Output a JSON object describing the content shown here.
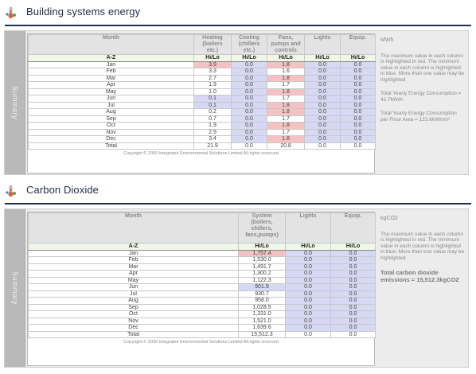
{
  "energy": {
    "title": "Building systems energy",
    "side_tab": "Summary",
    "headers": [
      "Month",
      "Heating (boilers etc.)",
      "Cooling (chillers etc.)",
      "Fans, pumps and controls",
      "Lights",
      "Equip."
    ],
    "subheaders": [
      "A-Z",
      "Hi/Lo",
      "Hi/Lo",
      "Hi/Lo",
      "Hi/Lo",
      "Hi/Lo"
    ],
    "rows": [
      {
        "month": "Jan",
        "cells": [
          {
            "v": "3.9",
            "s": "hi"
          },
          {
            "v": "0.0",
            "s": "lo"
          },
          {
            "v": "1.8",
            "s": "hi"
          },
          {
            "v": "0.0",
            "s": "lo"
          },
          {
            "v": "0.0",
            "s": "lo"
          }
        ]
      },
      {
        "month": "Feb",
        "cells": [
          {
            "v": "3.3",
            "s": ""
          },
          {
            "v": "0.0",
            "s": "lo"
          },
          {
            "v": "1.6",
            "s": ""
          },
          {
            "v": "0.0",
            "s": "lo"
          },
          {
            "v": "0.0",
            "s": "lo"
          }
        ]
      },
      {
        "month": "Mar",
        "cells": [
          {
            "v": "2.7",
            "s": ""
          },
          {
            "v": "0.0",
            "s": "lo"
          },
          {
            "v": "1.8",
            "s": "hi"
          },
          {
            "v": "0.0",
            "s": "lo"
          },
          {
            "v": "0.0",
            "s": "lo"
          }
        ]
      },
      {
        "month": "Apr",
        "cells": [
          {
            "v": "1.9",
            "s": ""
          },
          {
            "v": "0.0",
            "s": "lo"
          },
          {
            "v": "1.7",
            "s": ""
          },
          {
            "v": "0.0",
            "s": "lo"
          },
          {
            "v": "0.0",
            "s": "lo"
          }
        ]
      },
      {
        "month": "May",
        "cells": [
          {
            "v": "1.0",
            "s": ""
          },
          {
            "v": "0.0",
            "s": "lo"
          },
          {
            "v": "1.8",
            "s": "hi"
          },
          {
            "v": "0.0",
            "s": "lo"
          },
          {
            "v": "0.0",
            "s": "lo"
          }
        ]
      },
      {
        "month": "Jun",
        "cells": [
          {
            "v": "0.1",
            "s": "lo"
          },
          {
            "v": "0.0",
            "s": "lo"
          },
          {
            "v": "1.7",
            "s": ""
          },
          {
            "v": "0.0",
            "s": "lo"
          },
          {
            "v": "0.0",
            "s": "lo"
          }
        ]
      },
      {
        "month": "Jul",
        "cells": [
          {
            "v": "0.1",
            "s": "lo"
          },
          {
            "v": "0.0",
            "s": "lo"
          },
          {
            "v": "1.8",
            "s": "hi"
          },
          {
            "v": "0.0",
            "s": "lo"
          },
          {
            "v": "0.0",
            "s": "lo"
          }
        ]
      },
      {
        "month": "Aug",
        "cells": [
          {
            "v": "0.2",
            "s": ""
          },
          {
            "v": "0.0",
            "s": "lo"
          },
          {
            "v": "1.8",
            "s": "hi"
          },
          {
            "v": "0.0",
            "s": "lo"
          },
          {
            "v": "0.0",
            "s": "lo"
          }
        ]
      },
      {
        "month": "Sep",
        "cells": [
          {
            "v": "0.7",
            "s": ""
          },
          {
            "v": "0.0",
            "s": "lo"
          },
          {
            "v": "1.7",
            "s": ""
          },
          {
            "v": "0.0",
            "s": "lo"
          },
          {
            "v": "0.0",
            "s": "lo"
          }
        ]
      },
      {
        "month": "Oct",
        "cells": [
          {
            "v": "1.9",
            "s": ""
          },
          {
            "v": "0.0",
            "s": "lo"
          },
          {
            "v": "1.8",
            "s": "hi"
          },
          {
            "v": "0.0",
            "s": "lo"
          },
          {
            "v": "0.0",
            "s": "lo"
          }
        ]
      },
      {
        "month": "Nov",
        "cells": [
          {
            "v": "2.9",
            "s": ""
          },
          {
            "v": "0.0",
            "s": "lo"
          },
          {
            "v": "1.7",
            "s": ""
          },
          {
            "v": "0.0",
            "s": "lo"
          },
          {
            "v": "0.0",
            "s": "lo"
          }
        ]
      },
      {
        "month": "Dec",
        "cells": [
          {
            "v": "3.4",
            "s": ""
          },
          {
            "v": "0.0",
            "s": "lo"
          },
          {
            "v": "1.8",
            "s": "hi"
          },
          {
            "v": "0.0",
            "s": "lo"
          },
          {
            "v": "0.0",
            "s": "lo"
          }
        ]
      }
    ],
    "total": {
      "month": "Total",
      "cells": [
        "21.9",
        "0.0",
        "20.8",
        "0.0",
        "0.0"
      ]
    },
    "copyright": "Copyright © 2009 Integrated Environmental Solutions Limited All rights reserved",
    "info": {
      "unit": "MWh",
      "note": "The maximum value in each column is highlighted in red. The minimum value in each column is highlighted in blue. More than one value may be highlighted",
      "yearly": "Total Yearly Energy Consumption = 42.7MWh",
      "per_area": "Total Yearly Energy Consumption per Floor Area = 122.6kWh/m²"
    }
  },
  "co2": {
    "title": "Carbon Dioxide",
    "side_tab": "Summary",
    "headers": [
      "Month",
      "System (boilers, chillers, fans,pumps)",
      "Lights",
      "Equip."
    ],
    "subheaders": [
      "A-Z",
      "Hi/Lo",
      "Hi/Lo",
      "Hi/Lo"
    ],
    "rows": [
      {
        "month": "Jan",
        "cells": [
          {
            "v": "1,757.4",
            "s": "hi"
          },
          {
            "v": "0.0",
            "s": "lo"
          },
          {
            "v": "0.0",
            "s": "lo"
          }
        ]
      },
      {
        "month": "Feb",
        "cells": [
          {
            "v": "1,530.0",
            "s": ""
          },
          {
            "v": "0.0",
            "s": "lo"
          },
          {
            "v": "0.0",
            "s": "lo"
          }
        ]
      },
      {
        "month": "Mar",
        "cells": [
          {
            "v": "1,491.7",
            "s": ""
          },
          {
            "v": "0.0",
            "s": "lo"
          },
          {
            "v": "0.0",
            "s": "lo"
          }
        ]
      },
      {
        "month": "Apr",
        "cells": [
          {
            "v": "1,300.2",
            "s": ""
          },
          {
            "v": "0.0",
            "s": "lo"
          },
          {
            "v": "0.0",
            "s": "lo"
          }
        ]
      },
      {
        "month": "May",
        "cells": [
          {
            "v": "1,122.3",
            "s": ""
          },
          {
            "v": "0.0",
            "s": "lo"
          },
          {
            "v": "0.0",
            "s": "lo"
          }
        ]
      },
      {
        "month": "Jun",
        "cells": [
          {
            "v": "901.9",
            "s": "lo"
          },
          {
            "v": "0.0",
            "s": "lo"
          },
          {
            "v": "0.0",
            "s": "lo"
          }
        ]
      },
      {
        "month": "Jul",
        "cells": [
          {
            "v": "930.7",
            "s": ""
          },
          {
            "v": "0.0",
            "s": "lo"
          },
          {
            "v": "0.0",
            "s": "lo"
          }
        ]
      },
      {
        "month": "Aug",
        "cells": [
          {
            "v": "958.0",
            "s": ""
          },
          {
            "v": "0.0",
            "s": "lo"
          },
          {
            "v": "0.0",
            "s": "lo"
          }
        ]
      },
      {
        "month": "Sep",
        "cells": [
          {
            "v": "1,028.5",
            "s": ""
          },
          {
            "v": "0.0",
            "s": "lo"
          },
          {
            "v": "0.0",
            "s": "lo"
          }
        ]
      },
      {
        "month": "Oct",
        "cells": [
          {
            "v": "1,331.0",
            "s": ""
          },
          {
            "v": "0.0",
            "s": "lo"
          },
          {
            "v": "0.0",
            "s": "lo"
          }
        ]
      },
      {
        "month": "Nov",
        "cells": [
          {
            "v": "1,521.0",
            "s": ""
          },
          {
            "v": "0.0",
            "s": "lo"
          },
          {
            "v": "0.0",
            "s": "lo"
          }
        ]
      },
      {
        "month": "Dec",
        "cells": [
          {
            "v": "1,639.6",
            "s": ""
          },
          {
            "v": "0.0",
            "s": "lo"
          },
          {
            "v": "0.0",
            "s": "lo"
          }
        ]
      }
    ],
    "total": {
      "month": "Total",
      "cells": [
        "15,512.3",
        "0.0",
        "0.0"
      ]
    },
    "copyright": "Copyright © 2009 Integrated Environmental Solutions Limited All rights reserved",
    "info": {
      "unit": "kgCO2",
      "note": "The maximum value in each column is highlighted in red. The minimum value in each column is highlighted in blue. More than one value may be highlighted",
      "total_label": "Total carbon dioxide emissions = 15,512.3kgCO2"
    }
  },
  "colors": {
    "header_rule": "#1f2f4f",
    "highlight_max": "#f4c2c2",
    "highlight_min": "#d6d8f4",
    "subheader_bg": "#f1f7e6"
  }
}
